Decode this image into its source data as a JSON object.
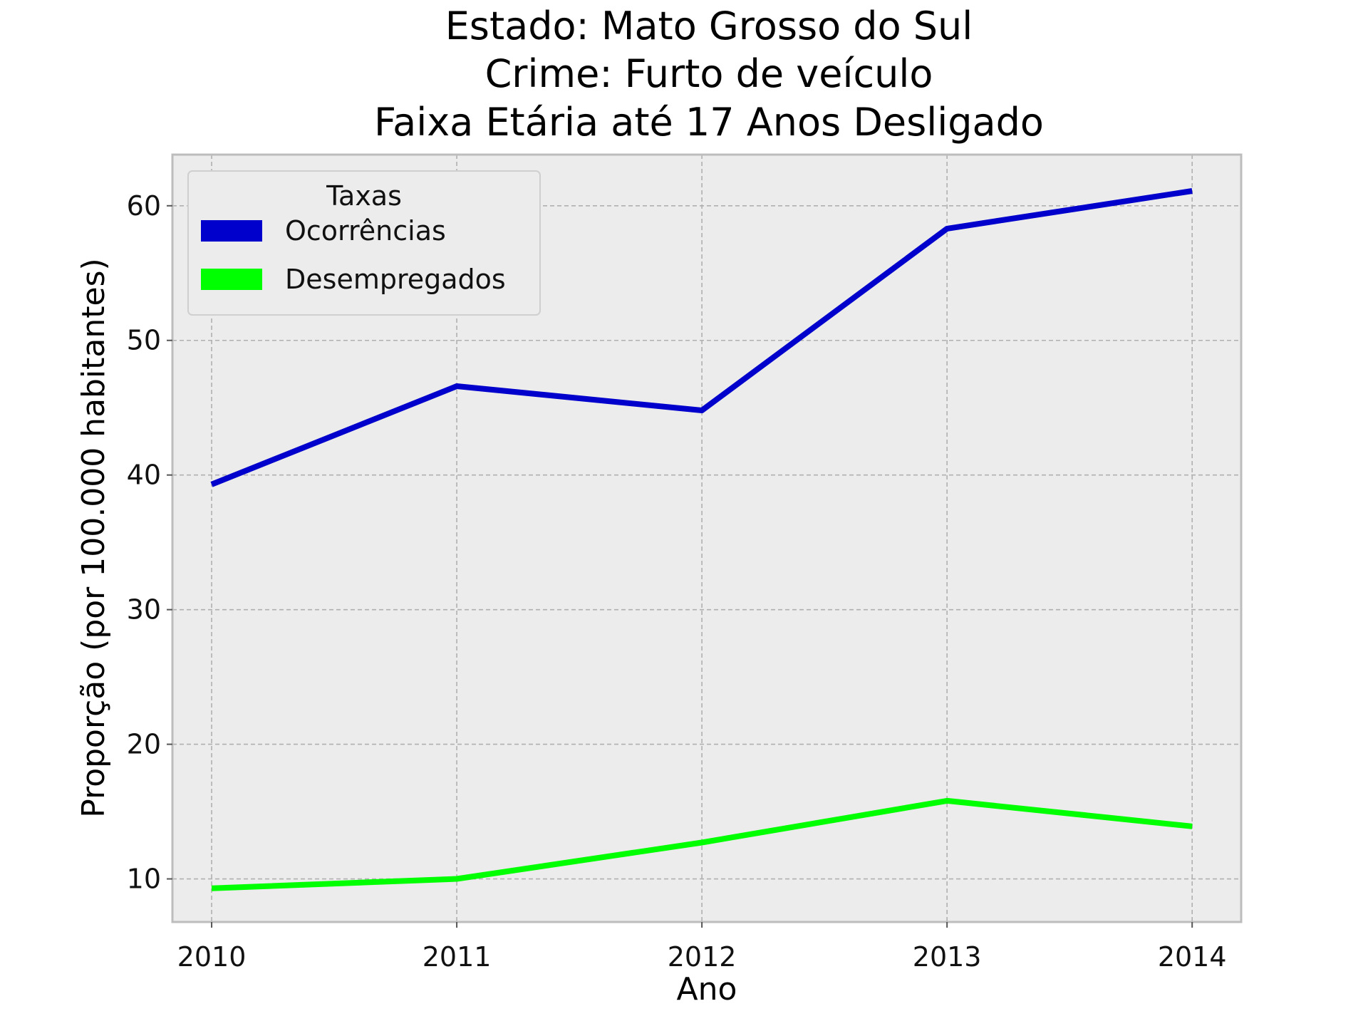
{
  "chart_data": {
    "type": "line",
    "title_lines": [
      "Estado: Mato Grosso do Sul",
      "Crime: Furto de veículo",
      "Faixa Etária até 17 Anos   Desligado"
    ],
    "xlabel": "Ano",
    "ylabel": "Proporção (por 100.000 habitantes)",
    "x": [
      "2010",
      "2011",
      "2012",
      "2013",
      "2014"
    ],
    "yticks": [
      10,
      20,
      30,
      40,
      50,
      60
    ],
    "xlim": [
      2009.84,
      2014.2
    ],
    "ylim": [
      6.8,
      63.8
    ],
    "grid": true,
    "legend": {
      "title": "Taxas",
      "placement": "top-left"
    },
    "series": [
      {
        "name": "Ocorrências",
        "color": "#0000cd",
        "values": [
          39.3,
          46.6,
          44.8,
          58.3,
          61.1
        ]
      },
      {
        "name": "Desempregados",
        "color": "#00ff00",
        "values": [
          9.3,
          10.0,
          12.7,
          15.8,
          13.9
        ]
      }
    ],
    "background": "#ececec"
  }
}
